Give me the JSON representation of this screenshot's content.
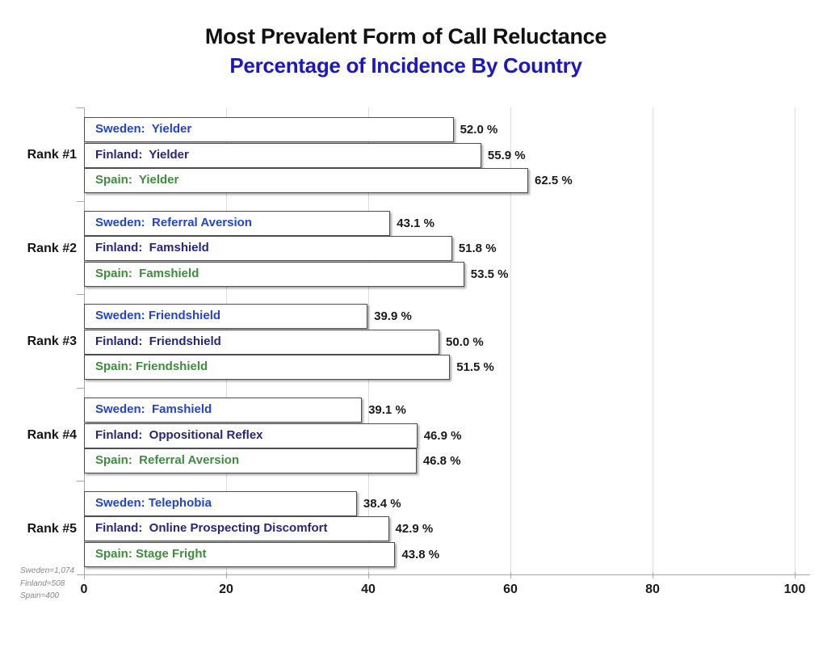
{
  "colors": {
    "subtitle": "#1c17c6",
    "sweden": "#2343d0",
    "finland": "#26267c",
    "spain": "#3f8c3f",
    "value_text": "#1a1a1a",
    "bar_border": "#4d4d4d",
    "gridline": "#dcdcdc",
    "axis": "#a6a6a6",
    "footnote": "#898989"
  },
  "footnote": {
    "lines": [
      "Sweden=1,074",
      "Finland=508",
      "Spain=400"
    ]
  },
  "chart_data": {
    "type": "bar",
    "orientation": "horizontal",
    "title": "Most Prevalent Form of Call Reluctance",
    "subtitle": "Percentage of Incidence By Country",
    "xlabel": "",
    "ylabel": "",
    "xlim": [
      0,
      100
    ],
    "x_ticks": [
      0,
      20,
      40,
      60,
      80,
      100
    ],
    "grid": "vertical-light-gray",
    "legend": "none (labels inside bars)",
    "sample_sizes": {
      "Sweden": "1,074",
      "Finland": "508",
      "Spain": "400"
    },
    "groups": [
      {
        "rank_label": "Rank #1",
        "bars": [
          {
            "country": "Sweden",
            "form": "Yielder",
            "label": "Sweden:  Yielder",
            "value": 52.0,
            "value_label": "52.0 %"
          },
          {
            "country": "Finland",
            "form": "Yielder",
            "label": "Finland:  Yielder",
            "value": 55.9,
            "value_label": "55.9 %"
          },
          {
            "country": "Spain",
            "form": "Yielder",
            "label": "Spain:  Yielder",
            "value": 62.5,
            "value_label": "62.5 %"
          }
        ]
      },
      {
        "rank_label": "Rank #2",
        "bars": [
          {
            "country": "Sweden",
            "form": "Referral Aversion",
            "label": "Sweden:  Referral Aversion",
            "value": 43.1,
            "value_label": "43.1 %"
          },
          {
            "country": "Finland",
            "form": "Famshield",
            "label": "Finland:  Famshield",
            "value": 51.8,
            "value_label": "51.8 %"
          },
          {
            "country": "Spain",
            "form": "Famshield",
            "label": "Spain:  Famshield",
            "value": 53.5,
            "value_label": "53.5 %"
          }
        ]
      },
      {
        "rank_label": "Rank #3",
        "bars": [
          {
            "country": "Sweden",
            "form": "Friendshield",
            "label": "Sweden: Friendshield",
            "value": 39.9,
            "value_label": "39.9 %"
          },
          {
            "country": "Finland",
            "form": "Friendshield",
            "label": "Finland:  Friendshield",
            "value": 50.0,
            "value_label": "50.0 %"
          },
          {
            "country": "Spain",
            "form": "Friendshield",
            "label": "Spain: Friendshield",
            "value": 51.5,
            "value_label": "51.5 %"
          }
        ]
      },
      {
        "rank_label": "Rank #4",
        "bars": [
          {
            "country": "Sweden",
            "form": "Famshield",
            "label": "Sweden:  Famshield",
            "value": 39.1,
            "value_label": "39.1 %"
          },
          {
            "country": "Finland",
            "form": "Oppositional Reflex",
            "label": "Finland:  Oppositional Reflex",
            "value": 46.9,
            "value_label": "46.9 %"
          },
          {
            "country": "Spain",
            "form": "Referral Aversion",
            "label": "Spain:  Referral Aversion",
            "value": 46.8,
            "value_label": "46.8 %"
          }
        ]
      },
      {
        "rank_label": "Rank #5",
        "bars": [
          {
            "country": "Sweden",
            "form": "Telephobia",
            "label": "Sweden: Telephobia",
            "value": 38.4,
            "value_label": "38.4 %"
          },
          {
            "country": "Finland",
            "form": "Online Prospecting Discomfort",
            "label": "Finland:  Online Prospecting Discomfort",
            "value": 42.9,
            "value_label": "42.9 %"
          },
          {
            "country": "Spain",
            "form": "Stage Fright",
            "label": "Spain: Stage Fright",
            "value": 43.8,
            "value_label": "43.8 %"
          }
        ]
      }
    ]
  }
}
